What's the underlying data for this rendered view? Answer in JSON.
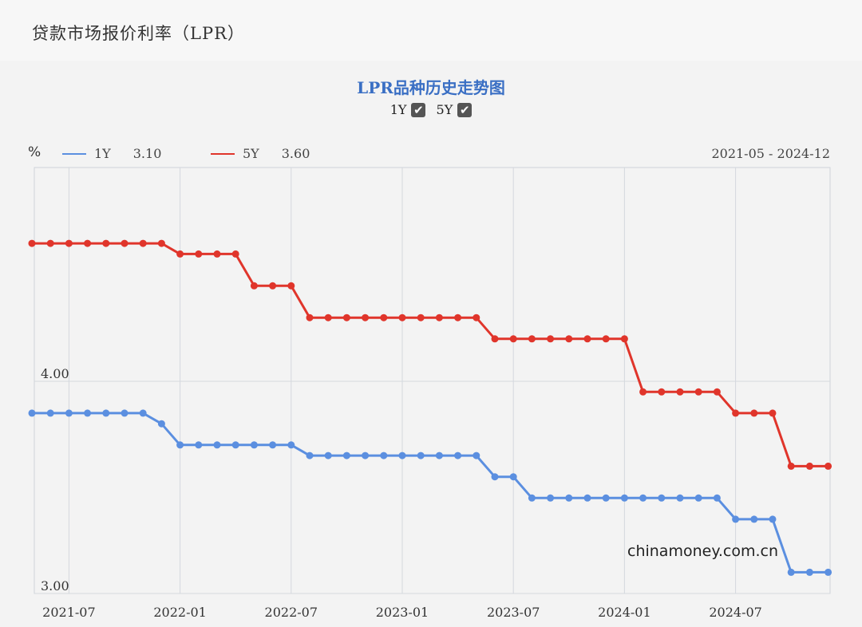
{
  "header": {
    "title": "贷款市场报价利率（LPR）"
  },
  "chart_title": "LPR品种历史走势图",
  "toggles": [
    {
      "label": "1Y",
      "checked": true,
      "check_glyph": "✔"
    },
    {
      "label": "5Y",
      "checked": true,
      "check_glyph": "✔"
    }
  ],
  "legend": {
    "unit": "%",
    "items": [
      {
        "name": "1Y",
        "value": "3.10",
        "color": "#5b8fe0"
      },
      {
        "name": "5Y",
        "value": "3.60",
        "color": "#e0352b"
      }
    ],
    "range": "2021-05 - 2024-12"
  },
  "watermark": "chinamoney.com.cn",
  "chart_data": {
    "type": "line",
    "x": [
      "2021-05",
      "2021-06",
      "2021-07",
      "2021-08",
      "2021-09",
      "2021-10",
      "2021-11",
      "2021-12",
      "2022-01",
      "2022-02",
      "2022-03",
      "2022-04",
      "2022-05",
      "2022-06",
      "2022-07",
      "2022-08",
      "2022-09",
      "2022-10",
      "2022-11",
      "2022-12",
      "2023-01",
      "2023-02",
      "2023-03",
      "2023-04",
      "2023-05",
      "2023-06",
      "2023-07",
      "2023-08",
      "2023-09",
      "2023-10",
      "2023-11",
      "2023-12",
      "2024-01",
      "2024-02",
      "2024-03",
      "2024-04",
      "2024-05",
      "2024-06",
      "2024-07",
      "2024-08",
      "2024-09",
      "2024-10",
      "2024-11",
      "2024-12"
    ],
    "series": [
      {
        "name": "1Y",
        "color": "#5b8fe0",
        "values": [
          3.85,
          3.85,
          3.85,
          3.85,
          3.85,
          3.85,
          3.85,
          3.8,
          3.7,
          3.7,
          3.7,
          3.7,
          3.7,
          3.7,
          3.7,
          3.65,
          3.65,
          3.65,
          3.65,
          3.65,
          3.65,
          3.65,
          3.65,
          3.65,
          3.65,
          3.55,
          3.55,
          3.45,
          3.45,
          3.45,
          3.45,
          3.45,
          3.45,
          3.45,
          3.45,
          3.45,
          3.45,
          3.45,
          3.35,
          3.35,
          3.35,
          3.1,
          3.1,
          3.1
        ]
      },
      {
        "name": "5Y",
        "color": "#e0352b",
        "values": [
          4.65,
          4.65,
          4.65,
          4.65,
          4.65,
          4.65,
          4.65,
          4.65,
          4.6,
          4.6,
          4.6,
          4.6,
          4.45,
          4.45,
          4.45,
          4.3,
          4.3,
          4.3,
          4.3,
          4.3,
          4.3,
          4.3,
          4.3,
          4.3,
          4.3,
          4.2,
          4.2,
          4.2,
          4.2,
          4.2,
          4.2,
          4.2,
          4.2,
          3.95,
          3.95,
          3.95,
          3.95,
          3.95,
          3.85,
          3.85,
          3.85,
          3.6,
          3.6,
          3.6
        ]
      }
    ],
    "xticks": [
      "2021-07",
      "2022-01",
      "2022-07",
      "2023-01",
      "2023-07",
      "2024-01",
      "2024-07"
    ],
    "yticks": [
      {
        "value": 4.0,
        "label": "4.00"
      },
      {
        "value": 3.0,
        "label": "3.00"
      }
    ],
    "ylim": [
      3.0,
      5.0
    ],
    "grid": true
  }
}
